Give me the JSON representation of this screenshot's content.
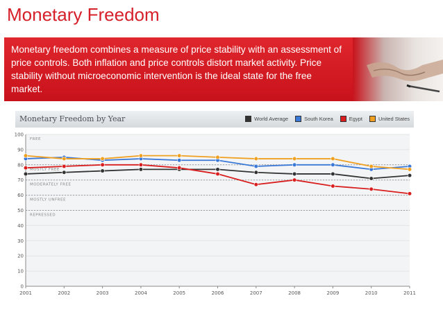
{
  "slide": {
    "title": "Monetary Freedom",
    "description": "Monetary freedom combines a measure of price stability with an assessment of price controls. Both inflation and price controls distort market activity. Price stability without microeconomic intervention is the ideal state for the free market."
  },
  "chart_data": {
    "type": "line",
    "title": "Monetary Freedom by Year",
    "xlabel": "",
    "ylabel": "",
    "x": [
      "2001",
      "2002",
      "2003",
      "2004",
      "2005",
      "2006",
      "2007",
      "2008",
      "2009",
      "2010",
      "2011"
    ],
    "ylim": [
      0,
      100
    ],
    "yticks": [
      0,
      10,
      20,
      30,
      40,
      50,
      60,
      70,
      80,
      90,
      100
    ],
    "bands": [
      {
        "label": "FREE",
        "from": 80,
        "to": 100
      },
      {
        "label": "MOSTLY FREE",
        "from": 70,
        "to": 80
      },
      {
        "label": "MODERATELY FREE",
        "from": 60,
        "to": 70
      },
      {
        "label": "MOSTLY UNFREE",
        "from": 50,
        "to": 60
      },
      {
        "label": "REPRESSED",
        "from": 0,
        "to": 50
      }
    ],
    "series": [
      {
        "name": "World Average",
        "color": "#333333",
        "values": [
          74,
          75,
          76,
          77,
          77,
          77,
          75,
          74,
          74,
          71,
          73
        ]
      },
      {
        "name": "South Korea",
        "color": "#3a78d8",
        "values": [
          84,
          85,
          83,
          84,
          83,
          83,
          79,
          80,
          80,
          77,
          79
        ]
      },
      {
        "name": "Egypt",
        "color": "#d81e1e",
        "values": [
          78,
          79,
          80,
          80,
          78,
          74,
          67,
          70,
          66,
          64,
          61
        ]
      },
      {
        "name": "United States",
        "color": "#f0a020",
        "values": [
          86,
          84,
          84,
          86,
          86,
          85,
          84,
          84,
          84,
          79,
          77
        ]
      }
    ]
  }
}
